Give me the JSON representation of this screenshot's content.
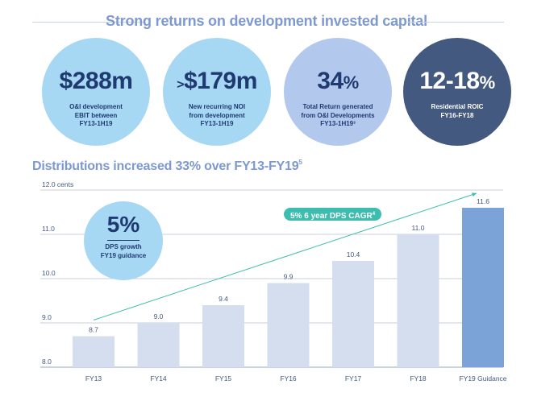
{
  "header": {
    "title": "Strong returns on development invested capital"
  },
  "stats": [
    {
      "prefix": "",
      "value": "$288m",
      "suffix": "",
      "description": [
        "O&I development",
        "EBIT between",
        "FY13-1H19"
      ]
    },
    {
      "prefix": ">",
      "value": "$179m",
      "suffix": "",
      "description": [
        "New recurring NOI",
        "from development",
        "FY13-1H19"
      ]
    },
    {
      "prefix": "",
      "value": "34",
      "suffix": "%",
      "description": [
        "Total Return generated",
        "from O&I Developments",
        "FY13-1H19³"
      ]
    },
    {
      "prefix": "",
      "value": "12-18",
      "suffix": "%",
      "description": [
        "Residential ROIC",
        "FY16-FY18"
      ]
    }
  ],
  "section": {
    "title": "Distributions increased 33% over FY13-FY19",
    "footnote": "5"
  },
  "callouts": {
    "dps_growth": {
      "value": "5%",
      "line1": "DPS growth",
      "line2": "FY19 guidance"
    },
    "cagr": {
      "text": "5% 6 year DPS CAGR",
      "footnote": "4"
    }
  },
  "colors": {
    "bar": "#d5deef",
    "bar_highlight": "#7ba3d8",
    "trend": "#3dbdb0",
    "title": "#7d99cf",
    "navy": "#1f3a70"
  },
  "chart_data": {
    "type": "bar",
    "categories": [
      "FY13",
      "FY14",
      "FY15",
      "FY16",
      "FY17",
      "FY18",
      "FY19 Guidance"
    ],
    "values": [
      8.7,
      9.0,
      9.4,
      9.9,
      10.4,
      11.0,
      11.6
    ],
    "value_labels": [
      "8.7",
      "9.0",
      "9.4",
      "9.9",
      "10.4",
      "11.0",
      "11.6"
    ],
    "highlight_index": 6,
    "ylim": [
      8.0,
      12.0
    ],
    "yticks": [
      8.0,
      9.0,
      10.0,
      11.0,
      12.0
    ],
    "ytick_labels": [
      "8.0",
      "9.0",
      "10.0",
      "11.0",
      "12.0 cents"
    ],
    "grid": true,
    "trend_line": {
      "from_category": "FY13",
      "to_category": "FY19 Guidance",
      "label": "5% 6 year DPS CAGR"
    }
  }
}
